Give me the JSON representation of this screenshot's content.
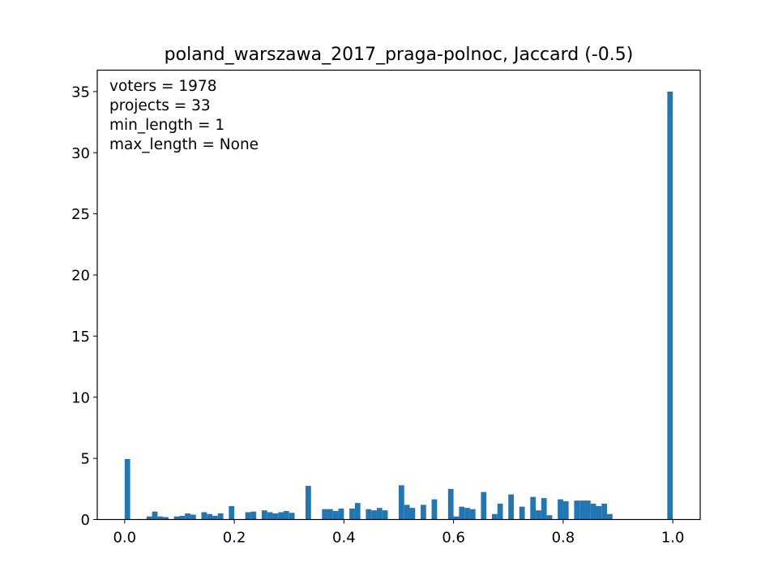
{
  "chart_data": {
    "type": "bar",
    "title": "poland_warszawa_2017_praga-polnoc, Jaccard (-0.5)",
    "xlabel": "",
    "ylabel": "",
    "xlim": [
      -0.05,
      1.05
    ],
    "ylim": [
      0,
      36.75
    ],
    "xticks": [
      0.0,
      0.2,
      0.4,
      0.6,
      0.8,
      1.0
    ],
    "xtick_labels": [
      "0.0",
      "0.2",
      "0.4",
      "0.6",
      "0.8",
      "1.0"
    ],
    "yticks": [
      0,
      5,
      10,
      15,
      20,
      25,
      30,
      35
    ],
    "ytick_labels": [
      "0",
      "5",
      "10",
      "15",
      "20",
      "25",
      "30",
      "35"
    ],
    "bar_color": "#1f77b4",
    "bin_width": 0.01,
    "grid": false,
    "legend": null,
    "annotations": [
      "voters = 1978",
      "projects = 33",
      "min_length = 1",
      "max_length = None"
    ],
    "bins_left": [
      0.0,
      0.01,
      0.02,
      0.03,
      0.04,
      0.05,
      0.06,
      0.07,
      0.08,
      0.09,
      0.1,
      0.11,
      0.12,
      0.13,
      0.14,
      0.15,
      0.16,
      0.17,
      0.18,
      0.19,
      0.2,
      0.21,
      0.22,
      0.23,
      0.24,
      0.25,
      0.26,
      0.27,
      0.28,
      0.29,
      0.3,
      0.31,
      0.32,
      0.33,
      0.34,
      0.35,
      0.36,
      0.37,
      0.38,
      0.39,
      0.4,
      0.41,
      0.42,
      0.43,
      0.44,
      0.45,
      0.46,
      0.47,
      0.48,
      0.49,
      0.5,
      0.51,
      0.52,
      0.53,
      0.54,
      0.55,
      0.56,
      0.57,
      0.58,
      0.59,
      0.6,
      0.61,
      0.62,
      0.63,
      0.64,
      0.65,
      0.66,
      0.67,
      0.68,
      0.69,
      0.7,
      0.71,
      0.72,
      0.73,
      0.74,
      0.75,
      0.76,
      0.77,
      0.78,
      0.79,
      0.8,
      0.81,
      0.82,
      0.83,
      0.84,
      0.85,
      0.86,
      0.87,
      0.88,
      0.89,
      0.9,
      0.91,
      0.92,
      0.93,
      0.94,
      0.95,
      0.96,
      0.97,
      0.98,
      0.99
    ],
    "values": [
      4.95,
      0,
      0,
      0,
      0.25,
      0.65,
      0.25,
      0.2,
      0,
      0.25,
      0.3,
      0.5,
      0.4,
      0,
      0.6,
      0.45,
      0.3,
      0.5,
      0,
      1.1,
      0,
      0,
      0.6,
      0.65,
      0,
      0.75,
      0.6,
      0.5,
      0.6,
      0.7,
      0.55,
      0,
      0,
      2.75,
      0,
      0,
      0.85,
      0.85,
      0.7,
      0.9,
      0,
      0.9,
      1.35,
      0,
      0.85,
      0.75,
      0.95,
      0.75,
      0,
      0,
      2.8,
      1.2,
      0.95,
      0,
      1.2,
      0,
      1.65,
      0,
      0,
      2.5,
      0.25,
      1.05,
      0.95,
      0.85,
      0,
      2.25,
      0,
      0.45,
      1.3,
      0,
      2.05,
      0,
      1.05,
      0,
      1.85,
      0.75,
      1.75,
      0.35,
      0,
      1.65,
      1.5,
      0,
      1.55,
      1.55,
      1.55,
      1.3,
      1.1,
      1.3,
      0.45,
      0,
      0,
      0,
      0,
      0,
      0,
      0,
      0,
      0,
      0,
      35.0
    ]
  }
}
